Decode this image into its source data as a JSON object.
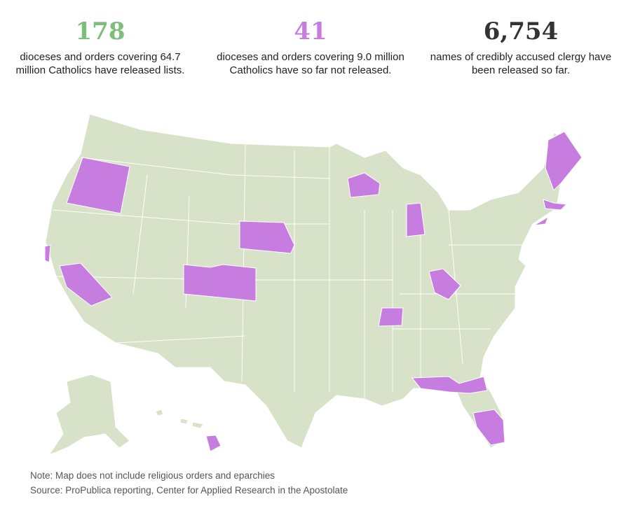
{
  "stats": [
    {
      "number": "178",
      "text": "dioceses and orders covering 64.7 million Catholics have released lists."
    },
    {
      "number": "41",
      "text": "dioceses and orders covering 9.0 million Catholics have so far not released."
    },
    {
      "number": "6,754",
      "text": "names of credibly accused clergy have been released so far."
    }
  ],
  "notes": {
    "note": "Note: Map does not include religious orders and eparchies",
    "source": "Source: ProPublica reporting, Center for Applied Research in the Apostolate"
  }
}
